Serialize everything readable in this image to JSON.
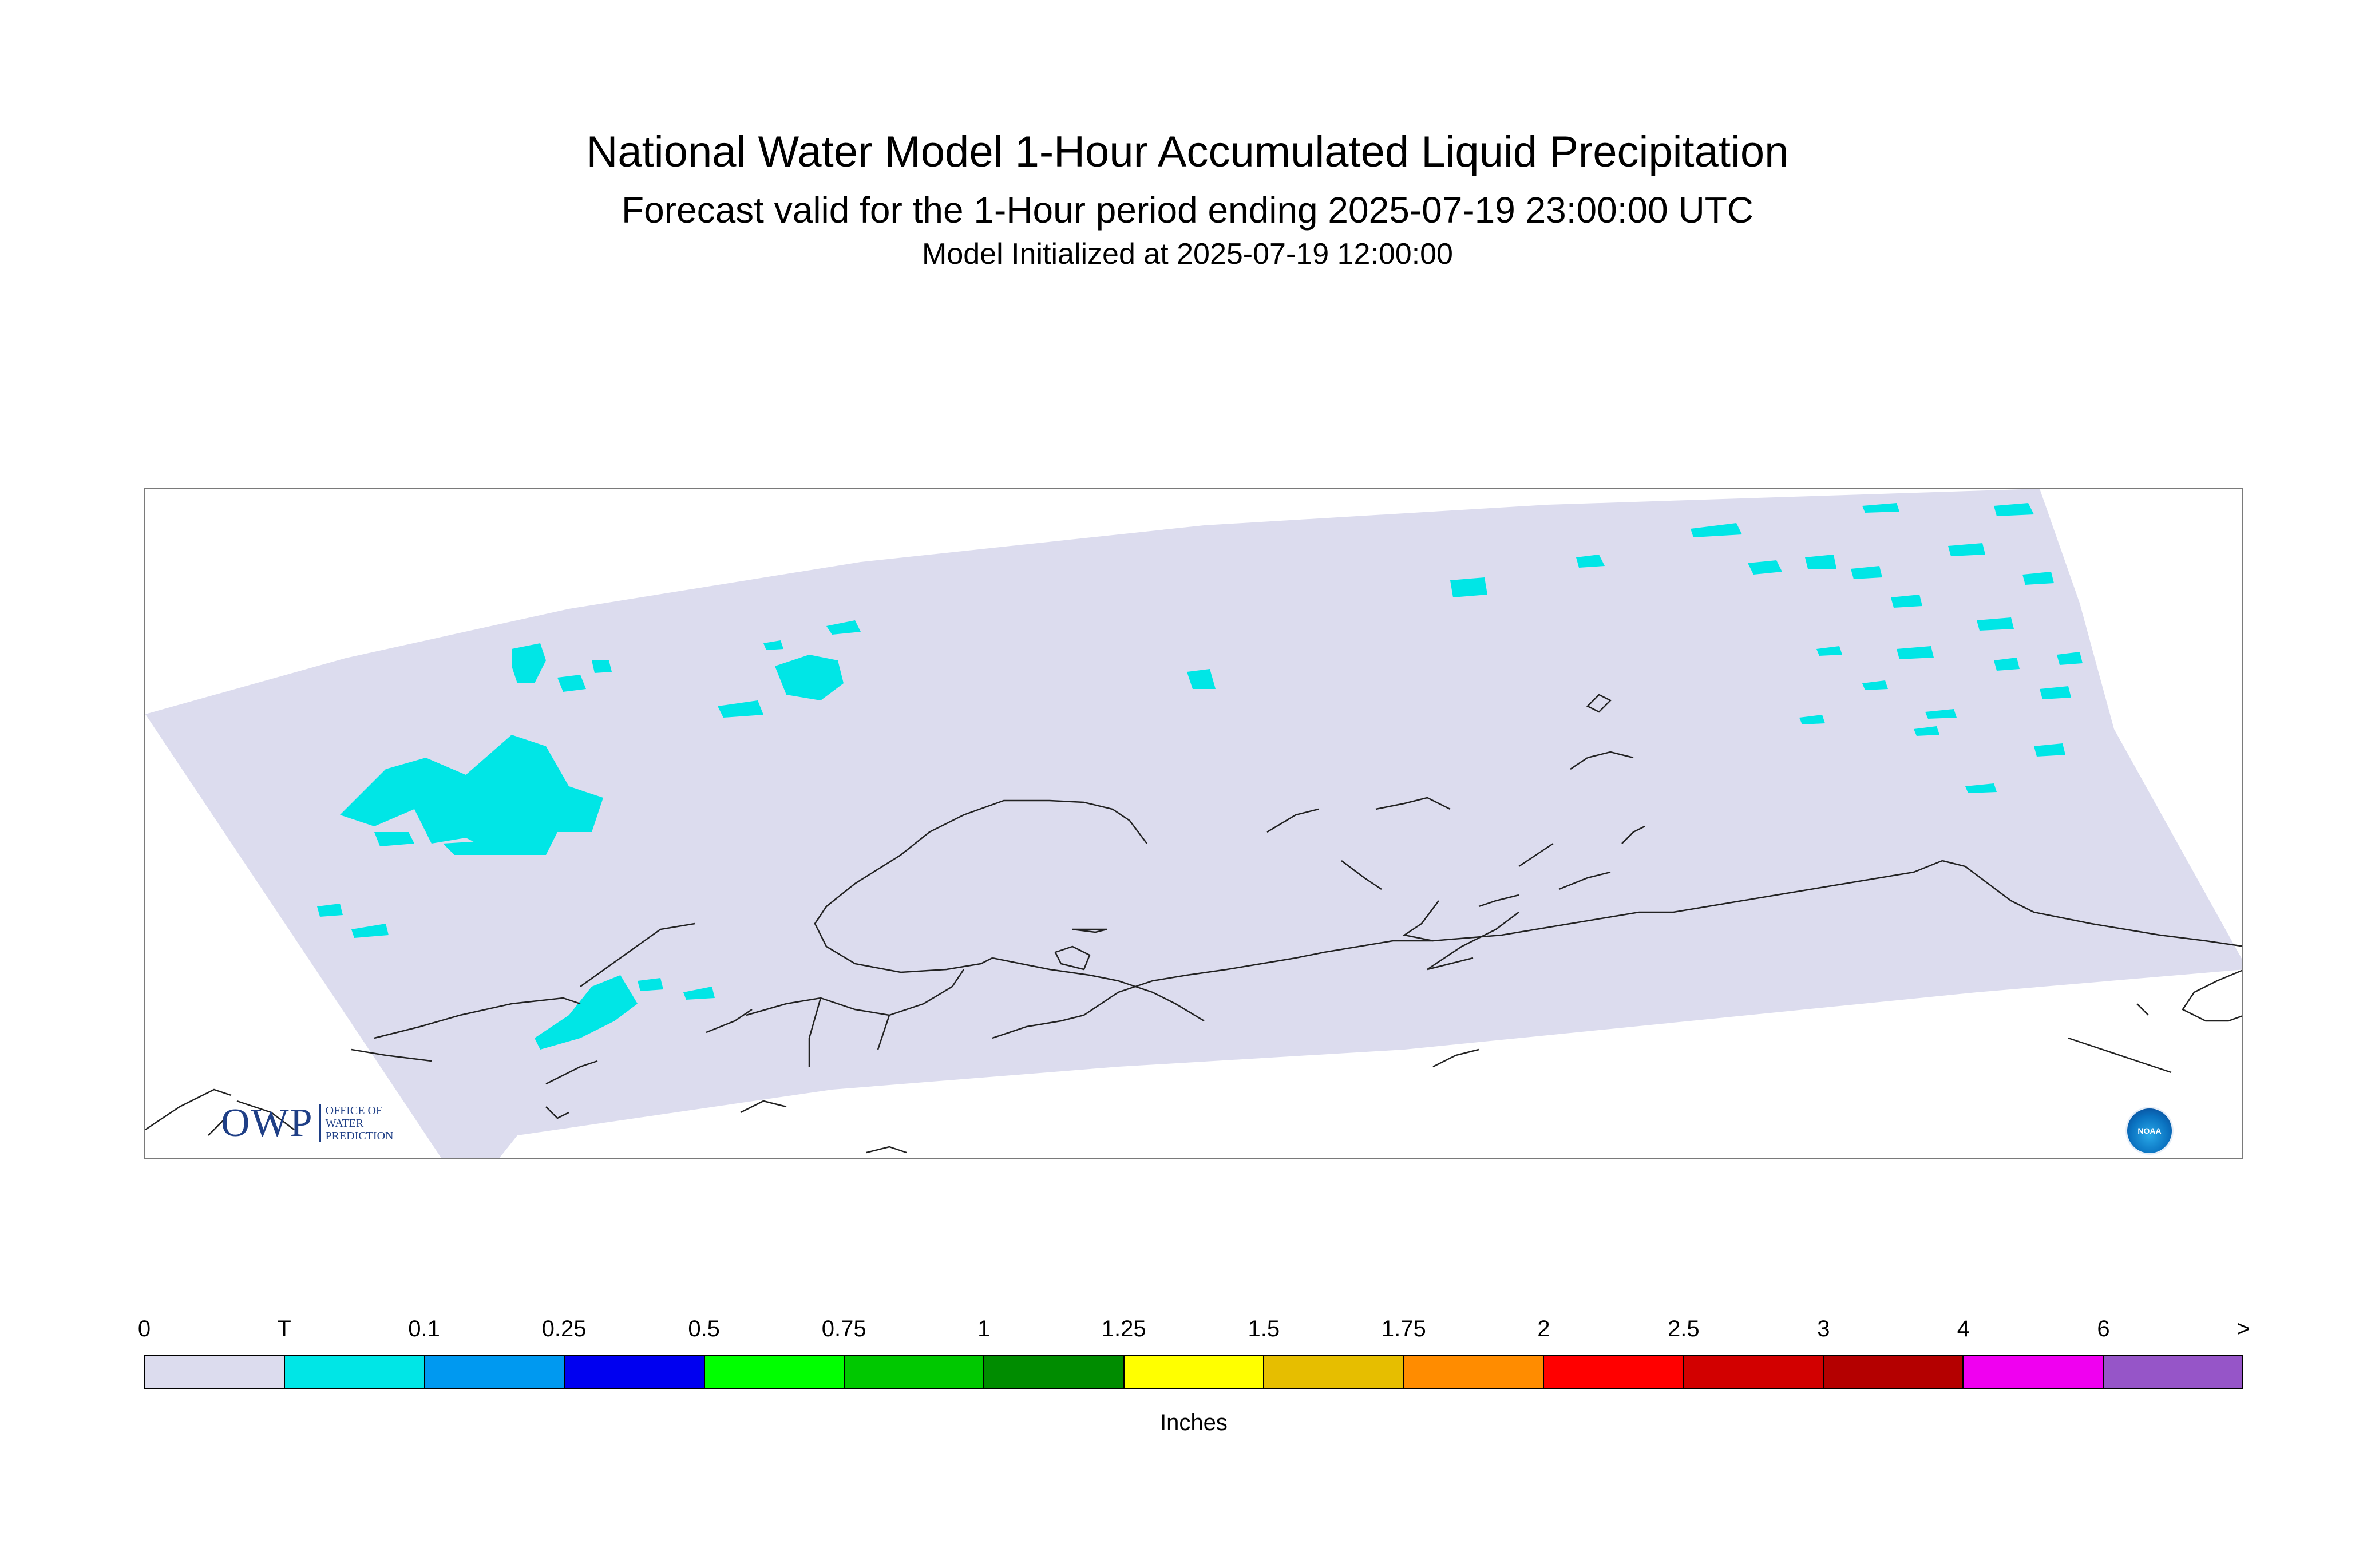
{
  "title": {
    "line1": "National Water Model 1-Hour Accumulated Liquid Precipitation",
    "line2": "Forecast valid for the 1-Hour period ending 2025-07-19 23:00:00 UTC",
    "line3": "Model Initialized at 2025-07-19 12:00:00"
  },
  "map": {
    "region": "Alaska",
    "domain_color": "#dcdcee",
    "precip_color": "#00e6e6",
    "coastline_color": "#222222",
    "precip_max_category": "T"
  },
  "logos": {
    "owp_mark": "OWP",
    "owp_text_lines": [
      "OFFICE OF",
      "WATER",
      "PREDICTION"
    ],
    "noaa_text": "NOAA"
  },
  "legend": {
    "units": "Inches",
    "labels": [
      "0",
      "T",
      "0.1",
      "0.25",
      "0.5",
      "0.75",
      "1",
      "1.25",
      "1.5",
      "1.75",
      "2",
      "2.5",
      "3",
      "4",
      "6",
      ">"
    ],
    "colors": [
      "#dcdcee",
      "#00e6e6",
      "#0099f0",
      "#0000f0",
      "#00ff00",
      "#00c800",
      "#008c00",
      "#ffff00",
      "#e6be00",
      "#ff8c00",
      "#ff0000",
      "#d20000",
      "#b40000",
      "#f000f0",
      "#9655c8"
    ]
  }
}
